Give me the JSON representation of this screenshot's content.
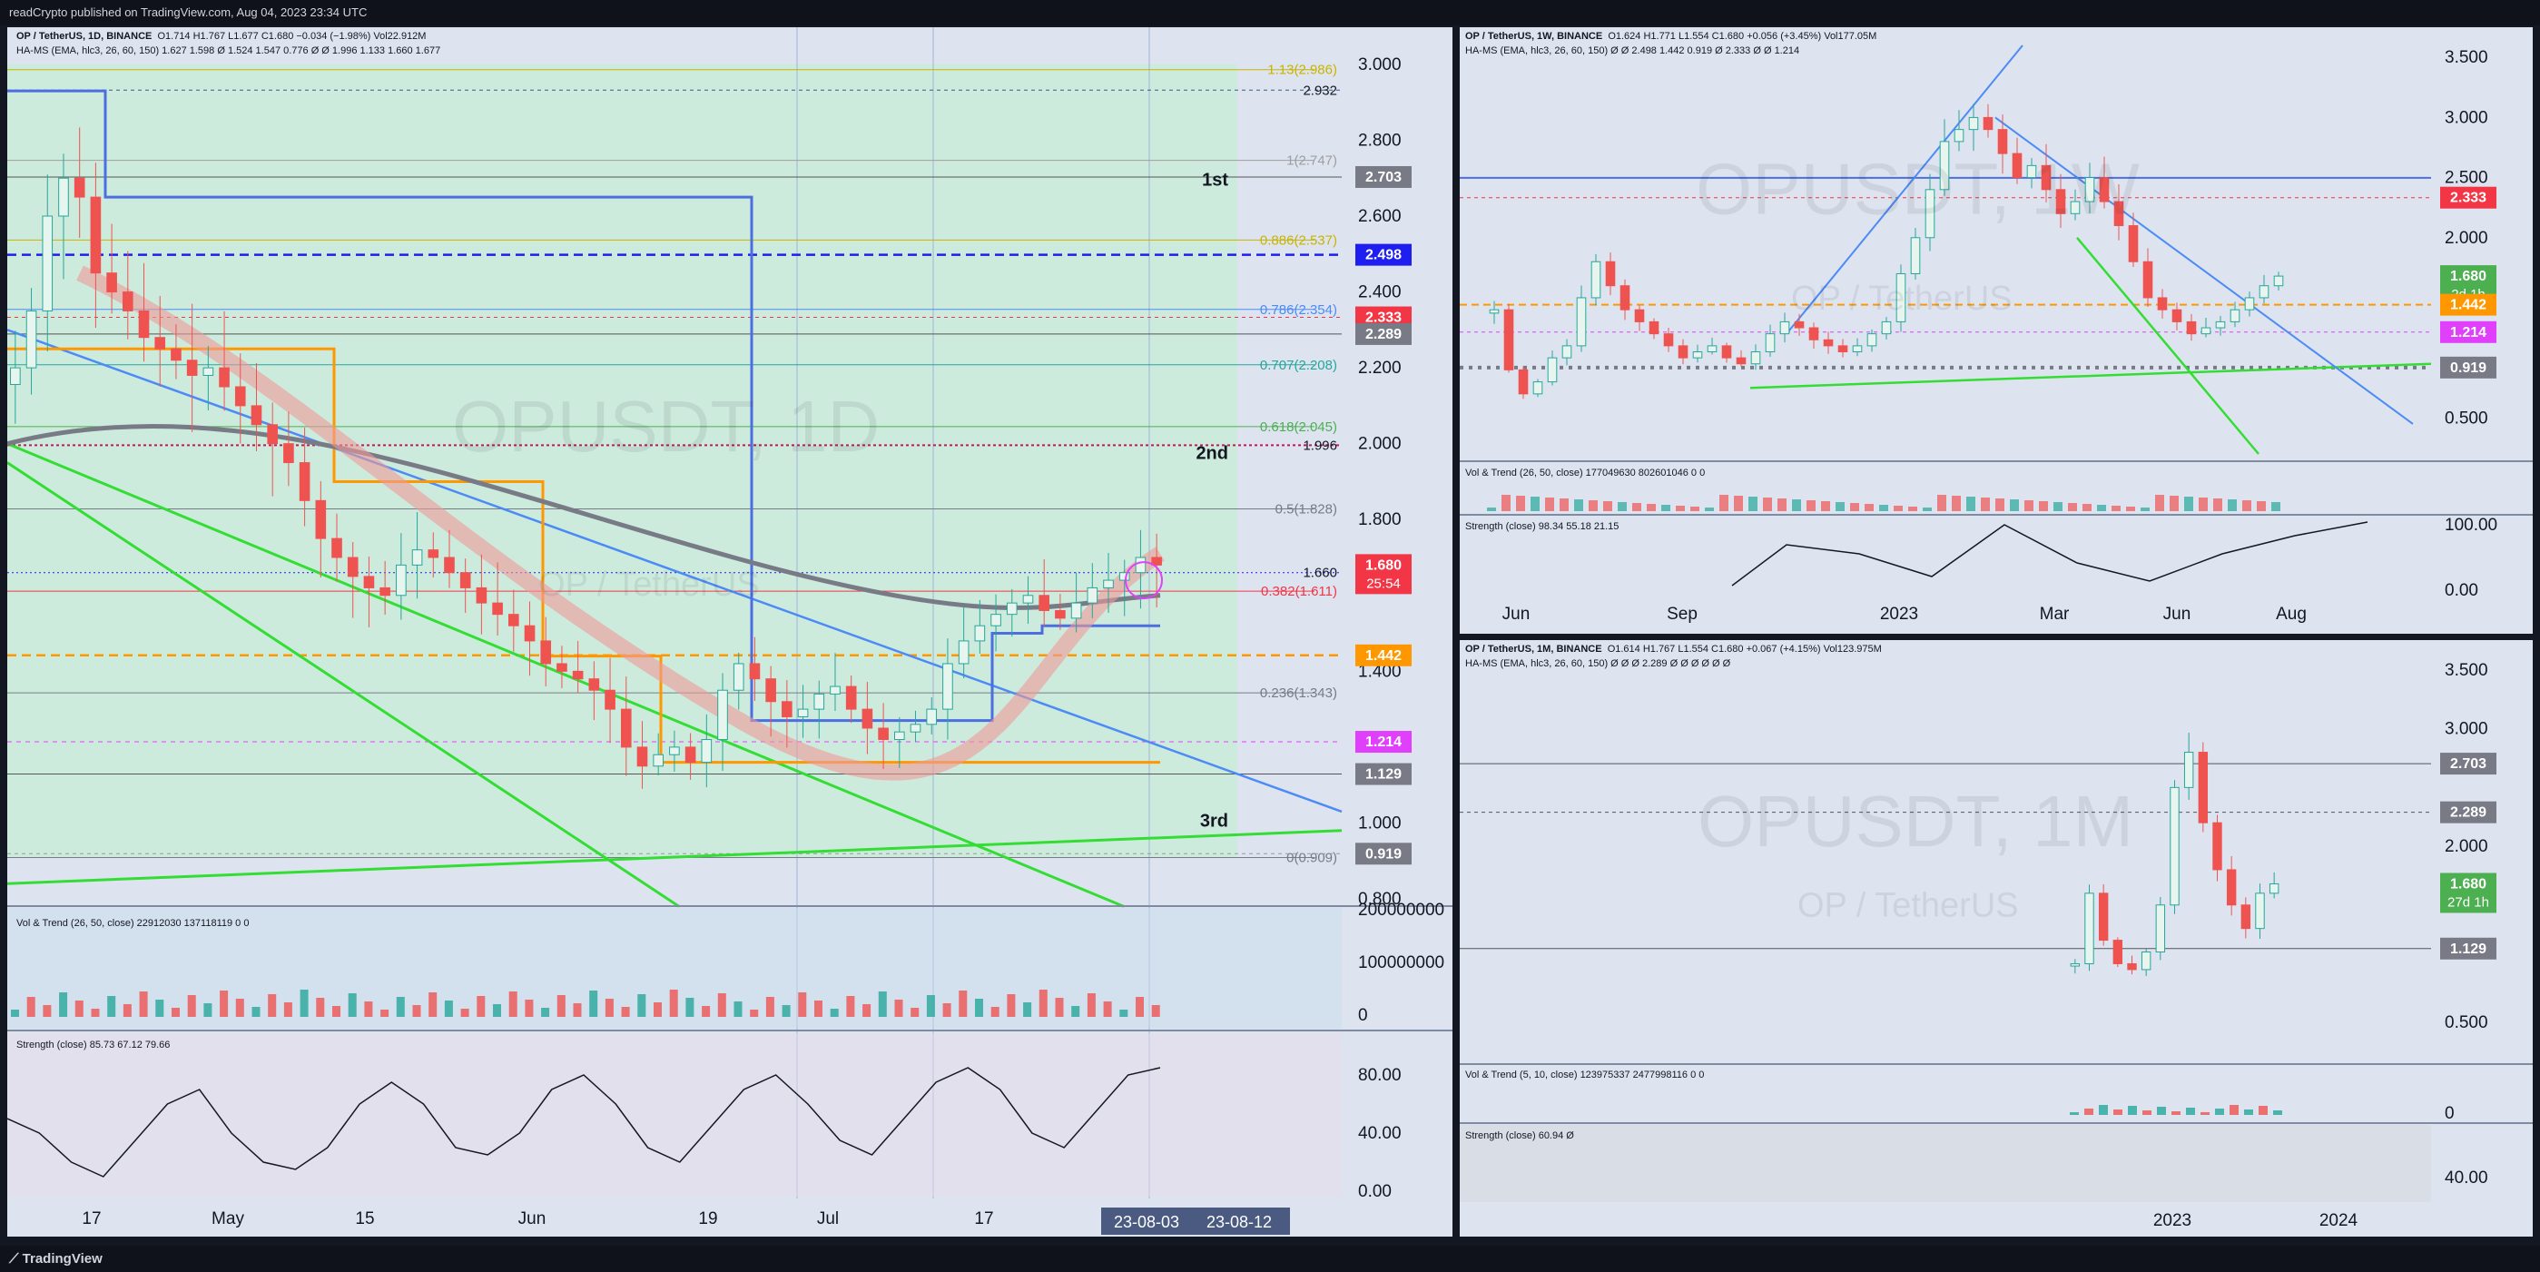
{
  "header": {
    "text": "readCrypto published on TradingView.com, Aug 04, 2023 23:34 UTC"
  },
  "footer": {
    "brand": "TradingView"
  },
  "daily": {
    "title": "OP / TetherUS, 1D, BINANCE",
    "ohlc": "O1.714  H1.767  L1.677  C1.680  −0.034 (−1.98%)  Vol22.912M",
    "indicator": "HA-MS (EMA, hlc3, 26, 60, 150)  1.627  1.598  Ø  1.524  1.547  0.776  Ø  Ø  1.996  1.133  1.660  1.677",
    "watermark": "OPUSDT, 1D",
    "watermark_sub": "OP / TetherUS",
    "y_ticks": [
      "3.000",
      "2.800",
      "2.600",
      "2.400",
      "2.200",
      "2.000",
      "1.800",
      "1.400",
      "1.000",
      "0.800"
    ],
    "fib": [
      "1.13(2.986)",
      "1(2.747)",
      "0.886(2.537)",
      "0.786(2.354)",
      "0.707(2.208)",
      "0.618(2.045)",
      "0.5(1.828)",
      "0.382(1.611)",
      "0.236(1.343)",
      "0(0.909)"
    ],
    "zone_labels": [
      "1st",
      "2nd",
      "3rd"
    ],
    "line_labels": {
      "l2932": "2.932",
      "l1996": "1.996",
      "l1660": "1.660"
    },
    "badges": [
      {
        "text": "2.703",
        "color": "#787b86"
      },
      {
        "text": "2.498",
        "color": "#1e1ef0"
      },
      {
        "text": "2.333",
        "color": "#f23645"
      },
      {
        "text": "2.289",
        "color": "#787b86"
      },
      {
        "text": "1.680",
        "sub": "25:54",
        "color": "#f23645"
      },
      {
        "text": "1.442",
        "color": "#ff9800"
      },
      {
        "text": "1.214",
        "color": "#e040fb"
      },
      {
        "text": "1.129",
        "color": "#787b86"
      },
      {
        "text": "0.919",
        "color": "#787b86"
      }
    ],
    "x_labels": [
      "17",
      "May",
      "15",
      "Jun",
      "19",
      "Jul",
      "17"
    ],
    "x_badges": [
      "23-08-03",
      "23-08-12"
    ],
    "vol_title": "Vol & Trend (26, 50, close)  22912030  137118119  0  0",
    "vol_ticks": [
      "200000000",
      "100000000",
      "0"
    ],
    "str_title": "Strength (close)  85.73  67.12  79.66",
    "str_ticks": [
      "80.00",
      "40.00",
      "0.00"
    ]
  },
  "weekly": {
    "title": "OP / TetherUS, 1W, BINANCE",
    "ohlc": "O1.624  H1.771  L1.554  C1.680  +0.056 (+3.45%)  Vol177.05M",
    "indicator": "HA-MS (EMA, hlc3, 26, 60, 150)  Ø  Ø  2.498  1.442  0.919  Ø  2.333  Ø  Ø  1.214",
    "watermark": "OPUSDT, 1W",
    "watermark_sub": "OP / TetherUS",
    "y_ticks": [
      "3.500",
      "3.000",
      "2.500",
      "2.000",
      "0.500"
    ],
    "badges": [
      {
        "text": "2.333",
        "color": "#f23645"
      },
      {
        "text": "1.680",
        "sub": "2d 1h",
        "color": "#4caf50"
      },
      {
        "text": "1.442",
        "color": "#ff9800"
      },
      {
        "text": "1.214",
        "color": "#e040fb"
      },
      {
        "text": "0.919",
        "color": "#787b86"
      }
    ],
    "x_labels": [
      "Jun",
      "Sep",
      "2023",
      "Mar",
      "Jun",
      "Aug"
    ],
    "vol_title": "Vol & Trend (26, 50, close)  177049630  802601046  0  0",
    "str_title": "Strength (close)  98.34  55.18  21.15",
    "str_ticks": [
      "100.00",
      "0.00"
    ]
  },
  "monthly": {
    "title": "OP / TetherUS, 1M, BINANCE",
    "ohlc": "O1.614  H1.767  L1.554  C1.680  +0.067 (+4.15%)  Vol123.975M",
    "indicator": "HA-MS (EMA, hlc3, 26, 60, 150)  Ø  Ø  Ø  2.289  Ø  Ø  Ø  Ø  Ø  Ø",
    "watermark": "OPUSDT, 1M",
    "watermark_sub": "OP / TetherUS",
    "y_ticks": [
      "3.500",
      "3.000",
      "2.000",
      "0.500"
    ],
    "badges": [
      {
        "text": "2.703",
        "color": "#787b86"
      },
      {
        "text": "2.289",
        "color": "#787b86"
      },
      {
        "text": "1.680",
        "sub": "27d 1h",
        "color": "#4caf50"
      },
      {
        "text": "1.129",
        "color": "#787b86"
      }
    ],
    "x_labels": [
      "2023",
      "2024"
    ],
    "vol_title": "Vol & Trend (5, 10, close)  123975337  2477998116  0  0",
    "vol_ticks": [
      "0"
    ],
    "str_title": "Strength (close)  60.94  Ø",
    "str_ticks": [
      "40.00"
    ]
  },
  "chart_data": [
    {
      "type": "candlestick",
      "symbol": "OP / TetherUS",
      "interval": "1D",
      "exchange": "BINANCE",
      "ylim": [
        0.8,
        3.05
      ],
      "last": {
        "open": 1.714,
        "high": 1.767,
        "low": 1.677,
        "close": 1.68,
        "change": -0.034,
        "change_pct": -1.98,
        "volume": "22.912M"
      },
      "horizontal_levels": [
        2.932,
        2.703,
        2.498,
        2.333,
        2.289,
        1.996,
        1.66,
        1.442,
        1.214,
        1.129,
        0.919
      ],
      "fib_levels": [
        {
          "ratio": 1.13,
          "price": 2.986
        },
        {
          "ratio": 1,
          "price": 2.747
        },
        {
          "ratio": 0.886,
          "price": 2.537
        },
        {
          "ratio": 0.786,
          "price": 2.354
        },
        {
          "ratio": 0.707,
          "price": 2.208
        },
        {
          "ratio": 0.618,
          "price": 2.045
        },
        {
          "ratio": 0.5,
          "price": 1.828
        },
        {
          "ratio": 0.382,
          "price": 1.611
        },
        {
          "ratio": 0.236,
          "price": 1.343
        },
        {
          "ratio": 0,
          "price": 0.909
        }
      ],
      "close": [
        2.2,
        2.35,
        2.6,
        2.7,
        2.65,
        2.45,
        2.4,
        2.35,
        2.28,
        2.25,
        2.22,
        2.18,
        2.2,
        2.15,
        2.1,
        2.05,
        2.0,
        1.95,
        1.85,
        1.75,
        1.7,
        1.65,
        1.62,
        1.6,
        1.68,
        1.72,
        1.7,
        1.66,
        1.62,
        1.58,
        1.55,
        1.52,
        1.48,
        1.42,
        1.4,
        1.38,
        1.35,
        1.3,
        1.2,
        1.15,
        1.18,
        1.2,
        1.16,
        1.22,
        1.35,
        1.42,
        1.38,
        1.32,
        1.28,
        1.3,
        1.34,
        1.36,
        1.3,
        1.25,
        1.22,
        1.24,
        1.26,
        1.3,
        1.42,
        1.48,
        1.52,
        1.55,
        1.58,
        1.6,
        1.56,
        1.54,
        1.58,
        1.62,
        1.64,
        1.66,
        1.7,
        1.68
      ],
      "x_labels": [
        "17",
        "May",
        "15",
        "Jun",
        "19",
        "Jul",
        "17"
      ],
      "volume_ylim": [
        0,
        200000000
      ],
      "strength_ylim": [
        0,
        100
      ],
      "strength": [
        50,
        40,
        20,
        10,
        35,
        60,
        70,
        40,
        20,
        15,
        30,
        60,
        75,
        60,
        30,
        25,
        40,
        70,
        80,
        60,
        30,
        20,
        45,
        70,
        80,
        60,
        35,
        25,
        50,
        75,
        85,
        70,
        40,
        30,
        55,
        80,
        85
      ]
    },
    {
      "type": "candlestick",
      "symbol": "OP / TetherUS",
      "interval": "1W",
      "exchange": "BINANCE",
      "ylim": [
        0.2,
        3.6
      ],
      "last": {
        "open": 1.624,
        "high": 1.771,
        "low": 1.554,
        "close": 1.68,
        "change": 0.056,
        "change_pct": 3.45,
        "volume": "177.05M"
      },
      "horizontal_levels": [
        2.498,
        2.333,
        1.442,
        1.214,
        0.919
      ],
      "close": [
        1.4,
        0.9,
        0.7,
        0.8,
        1.0,
        1.1,
        1.5,
        1.8,
        1.6,
        1.4,
        1.3,
        1.2,
        1.1,
        1.0,
        1.05,
        1.1,
        1.0,
        0.95,
        1.05,
        1.2,
        1.3,
        1.25,
        1.15,
        1.1,
        1.05,
        1.1,
        1.2,
        1.3,
        1.7,
        2.0,
        2.4,
        2.8,
        2.9,
        3.0,
        2.9,
        2.7,
        2.5,
        2.6,
        2.4,
        2.2,
        2.3,
        2.5,
        2.3,
        2.1,
        1.8,
        1.5,
        1.4,
        1.3,
        1.2,
        1.25,
        1.3,
        1.4,
        1.5,
        1.6,
        1.68
      ],
      "x_labels": [
        "Jun",
        "Sep",
        "2023",
        "Mar",
        "Jun",
        "Aug"
      ],
      "strength_ylim": [
        0,
        100
      ]
    },
    {
      "type": "candlestick",
      "symbol": "OP / TetherUS",
      "interval": "1M",
      "exchange": "BINANCE",
      "ylim": [
        0.2,
        3.6
      ],
      "last": {
        "open": 1.614,
        "high": 1.767,
        "low": 1.554,
        "close": 1.68,
        "change": 0.067,
        "change_pct": 4.15,
        "volume": "123.975M"
      },
      "horizontal_levels": [
        2.703,
        2.289,
        1.129
      ],
      "close": [
        1.0,
        1.6,
        1.2,
        1.0,
        0.95,
        1.1,
        1.5,
        2.5,
        2.8,
        2.2,
        1.8,
        1.5,
        1.3,
        1.6,
        1.68
      ],
      "x_labels": [
        "2023",
        "2024"
      ]
    }
  ]
}
